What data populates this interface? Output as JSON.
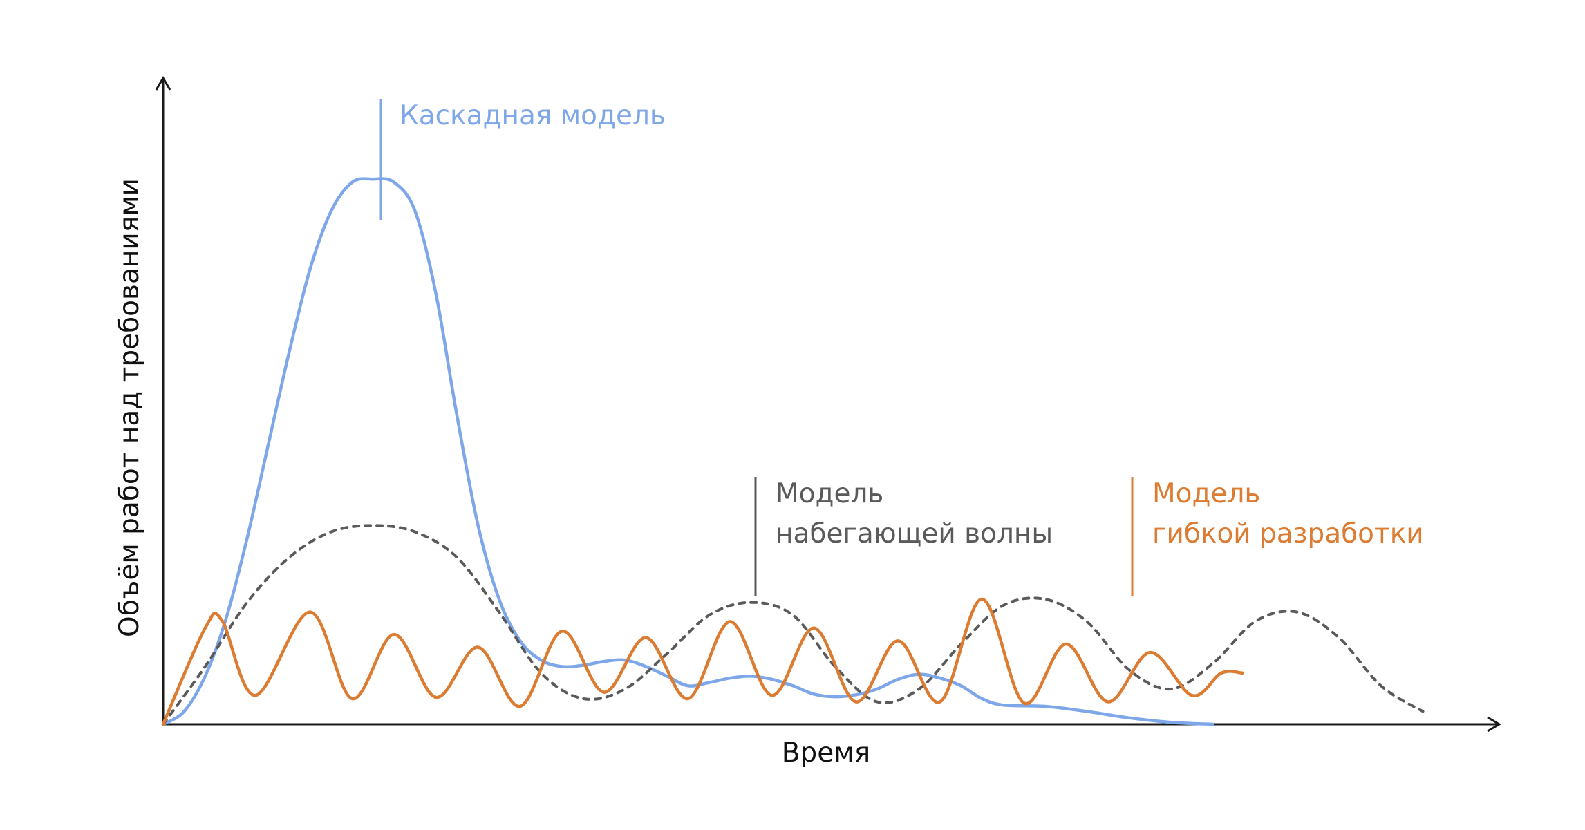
{
  "chart_data": {
    "type": "line",
    "xlabel": "Время",
    "ylabel": "Объём работ над требованиями",
    "grid": false,
    "series": [
      {
        "name": "Каскадная модель",
        "color": "#7ea7ea",
        "style": "solid",
        "annotation_lines": [
          "Каскадная модель"
        ],
        "points": [
          [
            0,
            0
          ],
          [
            0.5,
            0.2
          ],
          [
            1,
            0.75
          ],
          [
            1.5,
            1.65
          ],
          [
            2,
            2.9
          ],
          [
            2.5,
            4.35
          ],
          [
            3,
            5.8
          ],
          [
            3.5,
            7.1
          ],
          [
            4,
            8.0
          ],
          [
            4.5,
            8.45
          ],
          [
            5,
            8.5
          ],
          [
            5.5,
            8.45
          ],
          [
            6,
            8.0
          ],
          [
            6.5,
            6.7
          ],
          [
            7,
            4.8
          ],
          [
            7.5,
            3.1
          ],
          [
            8,
            1.95
          ],
          [
            8.5,
            1.3
          ],
          [
            9,
            1.0
          ],
          [
            9.5,
            0.9
          ],
          [
            10,
            0.92
          ],
          [
            10.5,
            0.98
          ],
          [
            11,
            1.0
          ],
          [
            11.5,
            0.9
          ],
          [
            12,
            0.75
          ],
          [
            12.5,
            0.6
          ],
          [
            13,
            0.65
          ],
          [
            13.5,
            0.72
          ],
          [
            14,
            0.75
          ],
          [
            14.5,
            0.7
          ],
          [
            15,
            0.6
          ],
          [
            15.5,
            0.47
          ],
          [
            16,
            0.43
          ],
          [
            16.5,
            0.46
          ],
          [
            17,
            0.55
          ],
          [
            17.5,
            0.7
          ],
          [
            18,
            0.78
          ],
          [
            18.5,
            0.72
          ],
          [
            19,
            0.6
          ],
          [
            19.5,
            0.4
          ],
          [
            20,
            0.3
          ],
          [
            21,
            0.28
          ],
          [
            22,
            0.2
          ],
          [
            23,
            0.1
          ],
          [
            24,
            0.03
          ],
          [
            25,
            0.0
          ]
        ]
      },
      {
        "name": "Модель набегающей волны",
        "color": "#5a5a5a",
        "style": "dashed",
        "annotation_lines": [
          "Модель",
          "набегающей волны"
        ],
        "points": [
          [
            0,
            0
          ],
          [
            1,
            0.9
          ],
          [
            2,
            1.9
          ],
          [
            3,
            2.6
          ],
          [
            4,
            3.0
          ],
          [
            5,
            3.1
          ],
          [
            6,
            3.0
          ],
          [
            7,
            2.6
          ],
          [
            8,
            1.75
          ],
          [
            9,
            0.8
          ],
          [
            10,
            0.4
          ],
          [
            11,
            0.55
          ],
          [
            12,
            1.1
          ],
          [
            13,
            1.7
          ],
          [
            14,
            1.9
          ],
          [
            15,
            1.7
          ],
          [
            16,
            0.9
          ],
          [
            17,
            0.35
          ],
          [
            18,
            0.55
          ],
          [
            19,
            1.25
          ],
          [
            20,
            1.85
          ],
          [
            21,
            1.95
          ],
          [
            22,
            1.6
          ],
          [
            23,
            0.85
          ],
          [
            24,
            0.55
          ],
          [
            25,
            0.95
          ],
          [
            26,
            1.6
          ],
          [
            27,
            1.75
          ],
          [
            28,
            1.35
          ],
          [
            29,
            0.6
          ],
          [
            30,
            0.2
          ]
        ]
      },
      {
        "name": "Модель гибкой разработки",
        "color": "#db7c32",
        "style": "solid",
        "annotation_lines": [
          "Модель",
          "гибкой разработки"
        ],
        "points": [
          [
            0,
            0
          ],
          [
            1,
            1.5
          ],
          [
            1.4,
            1.62
          ],
          [
            2.2,
            0.45
          ],
          [
            3.5,
            1.75
          ],
          [
            4.5,
            0.4
          ],
          [
            5.5,
            1.4
          ],
          [
            6.5,
            0.42
          ],
          [
            7.5,
            1.2
          ],
          [
            8.5,
            0.28
          ],
          [
            9.5,
            1.45
          ],
          [
            10.5,
            0.5
          ],
          [
            11.5,
            1.35
          ],
          [
            12.5,
            0.4
          ],
          [
            13.5,
            1.6
          ],
          [
            14.5,
            0.45
          ],
          [
            15.5,
            1.5
          ],
          [
            16.5,
            0.35
          ],
          [
            17.5,
            1.3
          ],
          [
            18.5,
            0.35
          ],
          [
            19.5,
            1.95
          ],
          [
            20.5,
            0.33
          ],
          [
            21.5,
            1.25
          ],
          [
            22.5,
            0.35
          ],
          [
            23.5,
            1.12
          ],
          [
            24.5,
            0.45
          ],
          [
            25.2,
            0.8
          ],
          [
            25.7,
            0.8
          ]
        ]
      }
    ]
  }
}
